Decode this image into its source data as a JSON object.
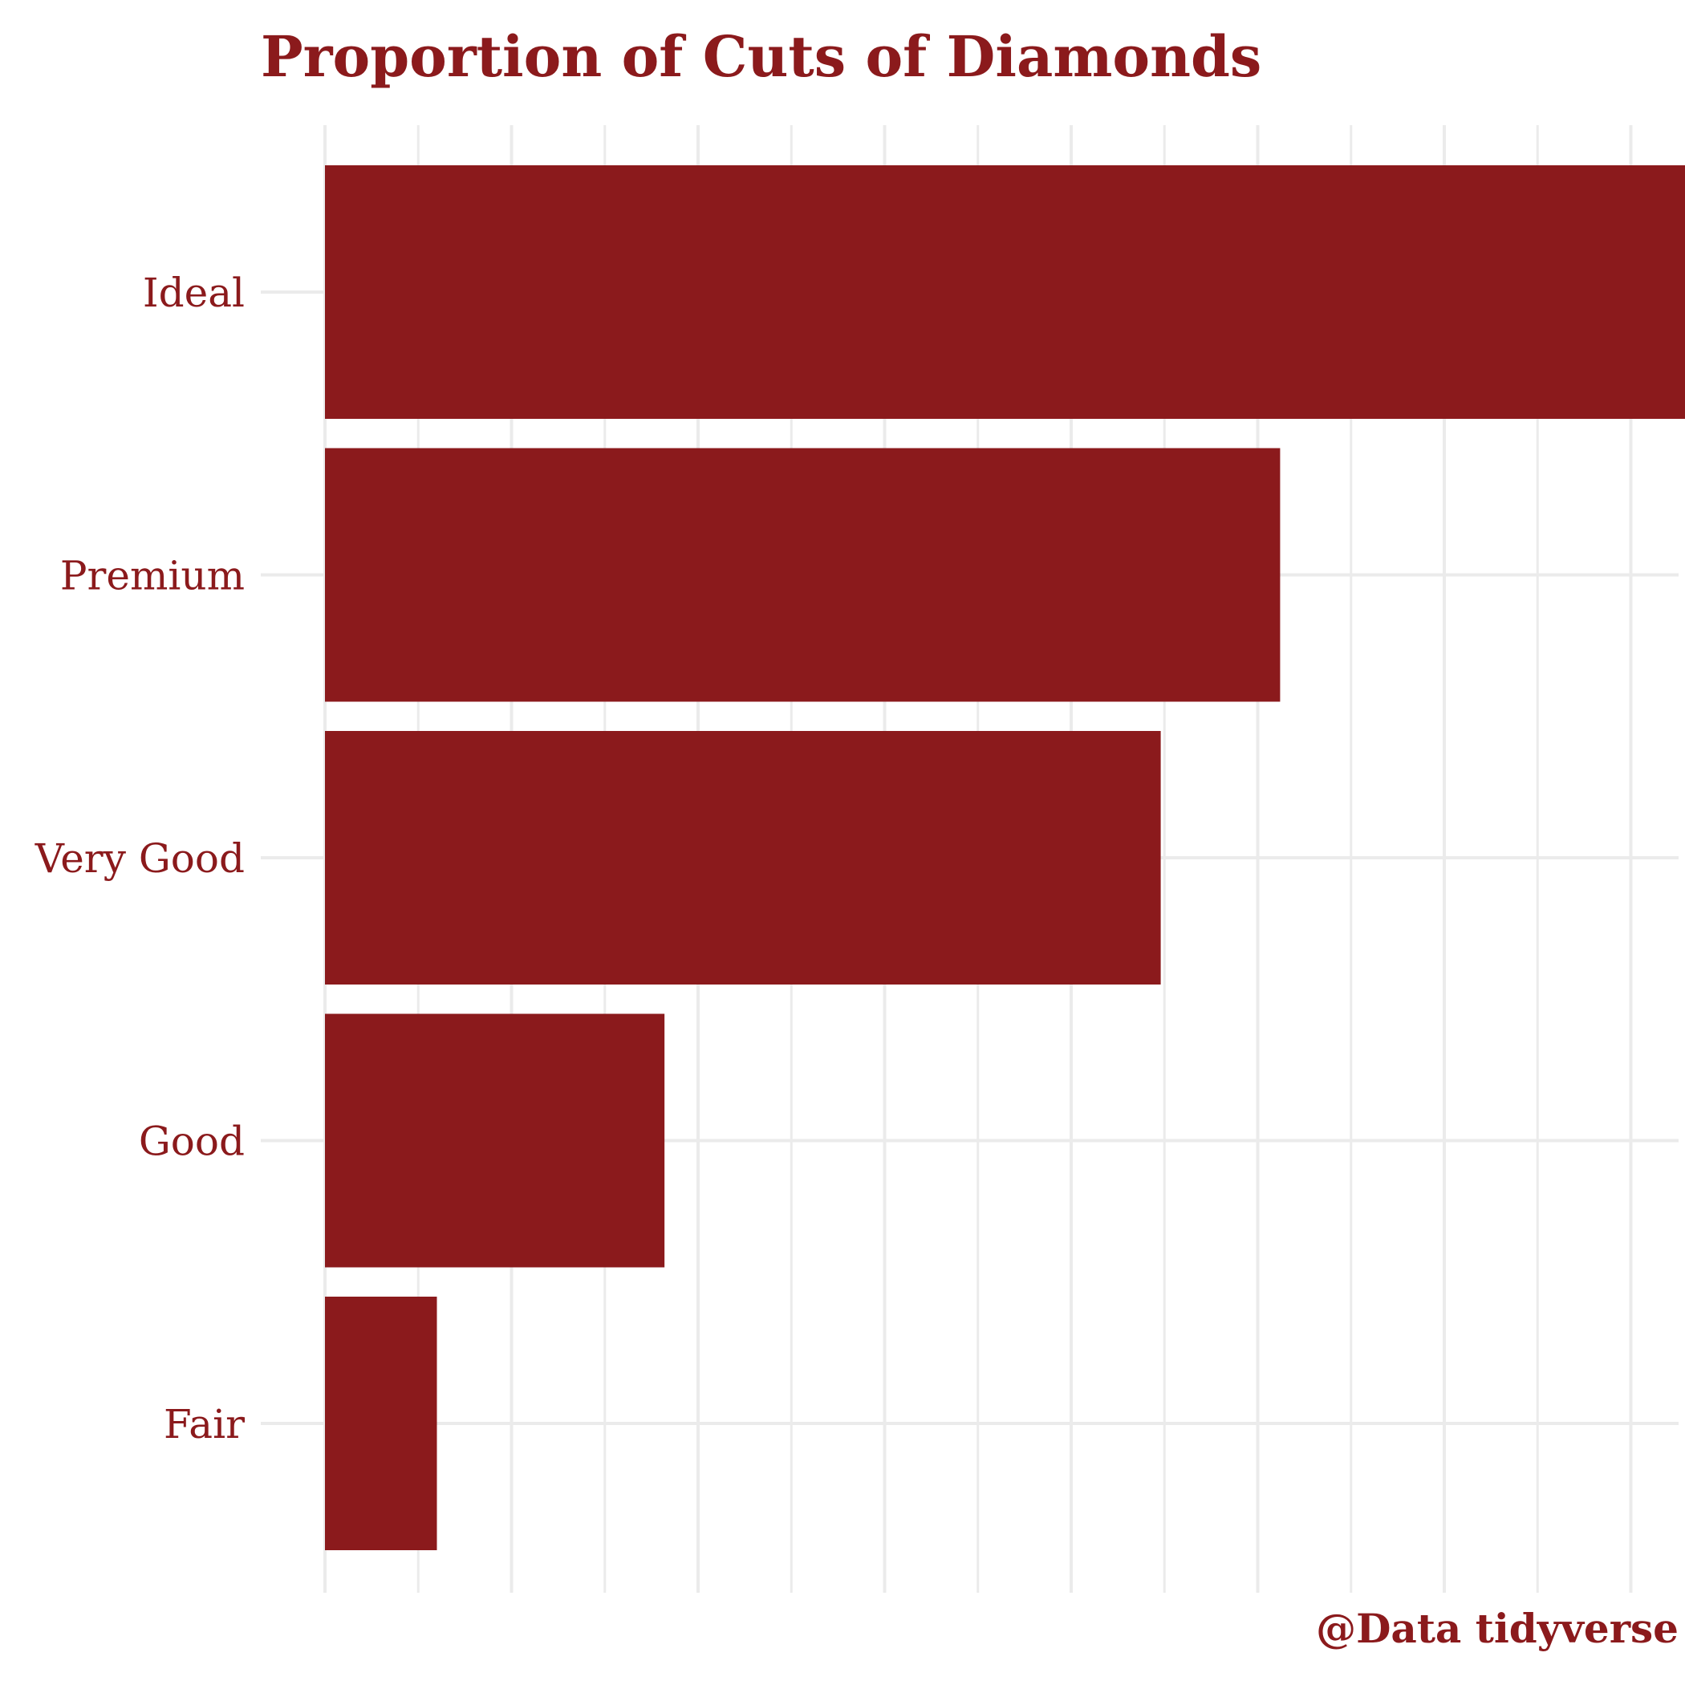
{
  "chart_data": {
    "type": "bar",
    "orientation": "horizontal",
    "title": "Proportion of Cuts of Diamonds",
    "caption": "@Data tidyverse",
    "xlabel": "",
    "ylabel": "",
    "categories": [
      "Ideal",
      "Premium",
      "Very Good",
      "Good",
      "Fair"
    ],
    "values": [
      0.4,
      0.256,
      0.224,
      0.091,
      0.03
    ],
    "xlim": [
      0,
      0.42
    ],
    "grid": true,
    "x_tick_labels_shown": false,
    "colors": {
      "bar": "#8B1A1C",
      "text": "#8B1A1C",
      "grid": "#EBEBEB",
      "background": "#FFFFFF"
    }
  }
}
